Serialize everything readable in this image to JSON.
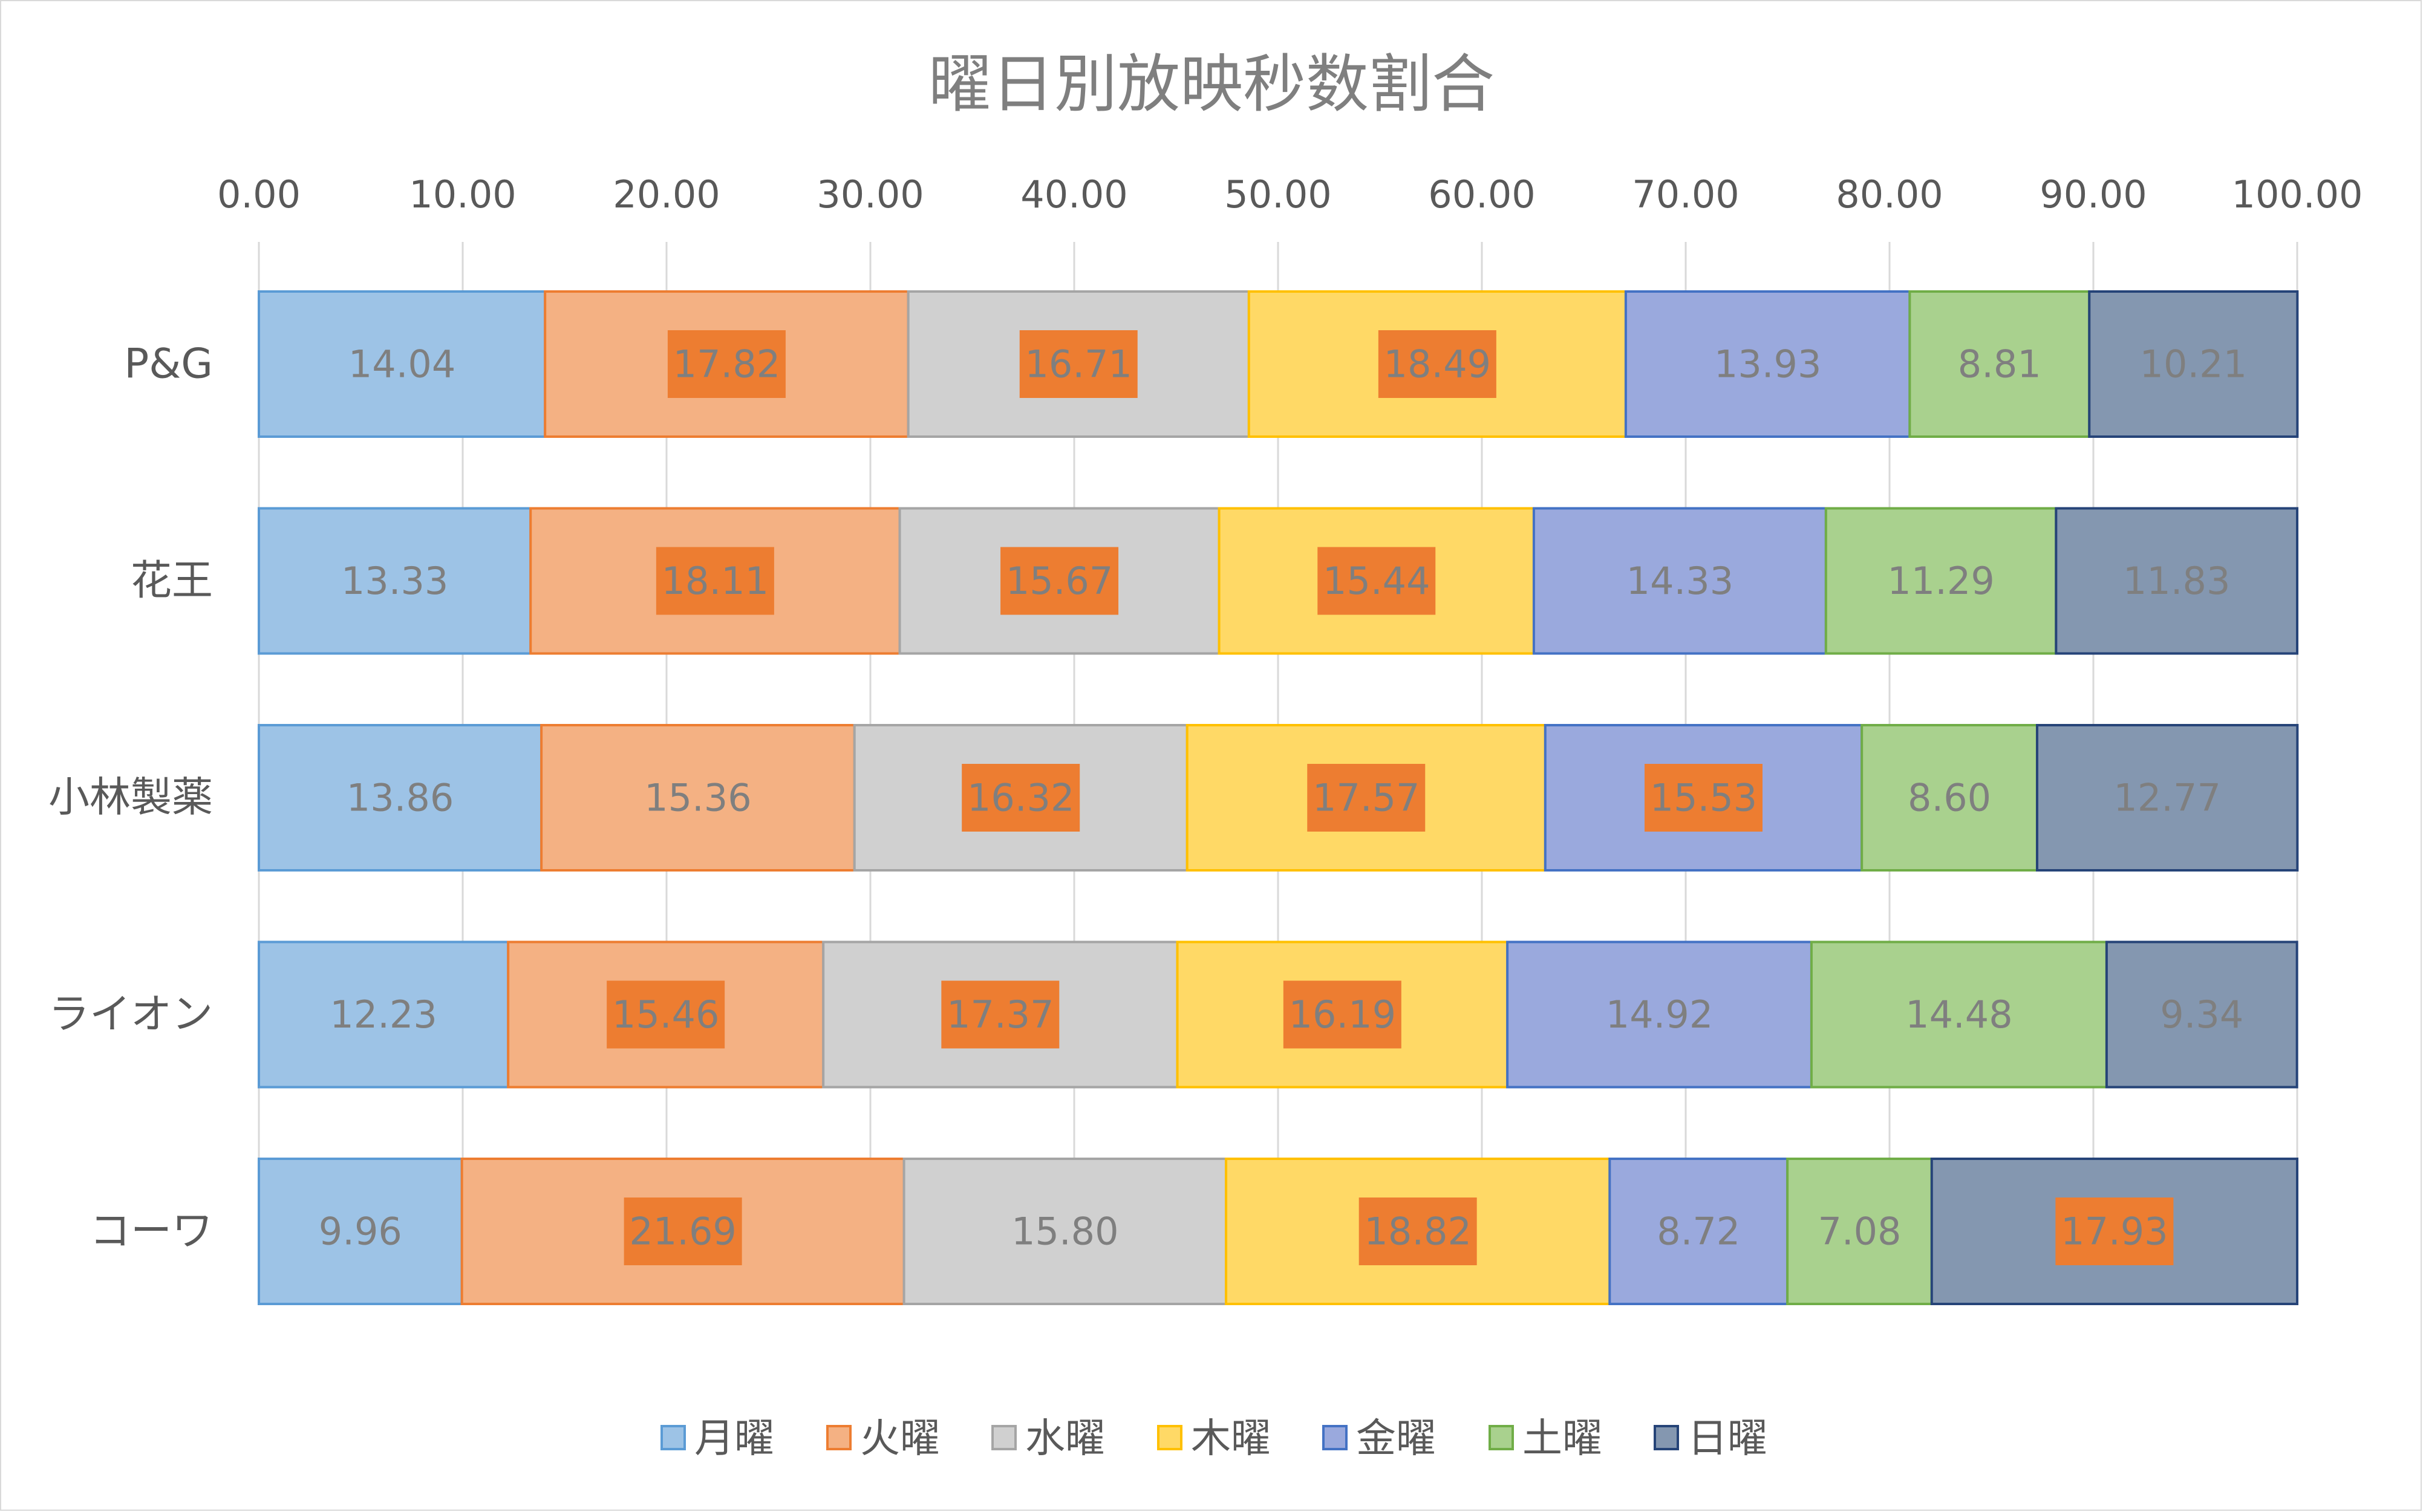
{
  "chart_data": {
    "type": "bar",
    "orientation": "horizontal",
    "stacked": true,
    "title": "曜日別放映秒数割合",
    "xlabel": "",
    "ylabel": "",
    "xlim": [
      0,
      100
    ],
    "x_ticks": [
      "0.00",
      "10.00",
      "20.00",
      "30.00",
      "40.00",
      "50.00",
      "60.00",
      "70.00",
      "80.00",
      "90.00",
      "100.00"
    ],
    "grid": true,
    "legend_position": "bottom",
    "categories": [
      "P&G",
      "花王",
      "小林製薬",
      "ライオン",
      "コーワ"
    ],
    "series": [
      {
        "name": "月曜",
        "color": "#9dc3e6",
        "border": "#5b9bd5",
        "values": [
          14.04,
          13.33,
          13.86,
          12.23,
          9.96
        ],
        "highlighted": [
          false,
          false,
          false,
          false,
          false
        ]
      },
      {
        "name": "火曜",
        "color": "#f4b183",
        "border": "#ed7d31",
        "values": [
          17.82,
          18.11,
          15.36,
          15.46,
          21.69
        ],
        "highlighted": [
          true,
          true,
          false,
          true,
          true
        ]
      },
      {
        "name": "水曜",
        "color": "#d0d0d0",
        "border": "#a5a5a5",
        "values": [
          16.71,
          15.67,
          16.32,
          17.37,
          15.8
        ],
        "highlighted": [
          true,
          true,
          true,
          true,
          false
        ]
      },
      {
        "name": "木曜",
        "color": "#ffd966",
        "border": "#ffc000",
        "values": [
          18.49,
          15.44,
          17.57,
          16.19,
          18.82
        ],
        "highlighted": [
          true,
          true,
          true,
          true,
          true
        ]
      },
      {
        "name": "金曜",
        "color": "#9aa9dd",
        "border": "#4472c4",
        "values": [
          13.93,
          14.33,
          15.53,
          14.92,
          8.72
        ],
        "highlighted": [
          false,
          false,
          true,
          false,
          false
        ]
      },
      {
        "name": "土曜",
        "color": "#a9d18e",
        "border": "#70ad47",
        "values": [
          8.81,
          11.29,
          8.6,
          14.48,
          7.08
        ],
        "highlighted": [
          false,
          false,
          false,
          false,
          false
        ]
      },
      {
        "name": "日曜",
        "color": "#8497b0",
        "border": "#264478",
        "values": [
          10.21,
          11.83,
          12.77,
          9.34,
          17.93
        ],
        "highlighted": [
          false,
          false,
          false,
          false,
          true
        ]
      }
    ],
    "value_label_color": "#7f7f7f",
    "highlight_fill": "#ed7d31",
    "highlight_text_color": "#7f7f7f"
  }
}
